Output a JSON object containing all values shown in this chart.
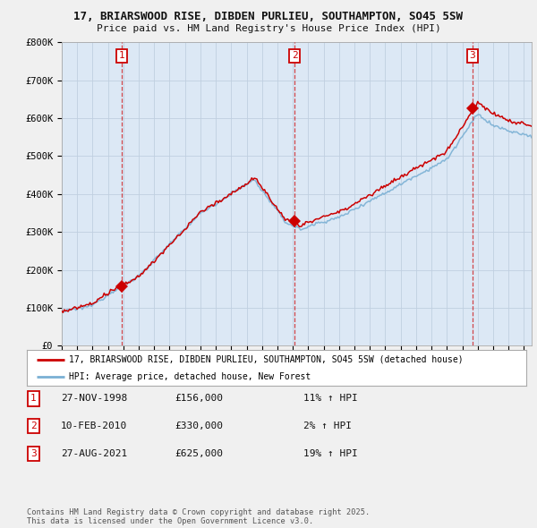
{
  "title_line1": "17, BRIARSWOOD RISE, DIBDEN PURLIEU, SOUTHAMPTON, SO45 5SW",
  "title_line2": "Price paid vs. HM Land Registry's House Price Index (HPI)",
  "ylim": [
    0,
    800000
  ],
  "yticks": [
    0,
    100000,
    200000,
    300000,
    400000,
    500000,
    600000,
    700000,
    800000
  ],
  "ytick_labels": [
    "£0",
    "£100K",
    "£200K",
    "£300K",
    "£400K",
    "£500K",
    "£600K",
    "£700K",
    "£800K"
  ],
  "sale_year_nums": [
    1998.9,
    2010.12,
    2021.65
  ],
  "sale_prices": [
    156000,
    330000,
    625000
  ],
  "sale_labels": [
    "1",
    "2",
    "3"
  ],
  "red_color": "#cc0000",
  "blue_color": "#7ab0d4",
  "plot_bg_color": "#dce8f5",
  "legend_label_red": "17, BRIARSWOOD RISE, DIBDEN PURLIEU, SOUTHAMPTON, SO45 5SW (detached house)",
  "legend_label_blue": "HPI: Average price, detached house, New Forest",
  "table_rows": [
    [
      "1",
      "27-NOV-1998",
      "£156,000",
      "11% ↑ HPI"
    ],
    [
      "2",
      "10-FEB-2010",
      "£330,000",
      "2% ↑ HPI"
    ],
    [
      "3",
      "27-AUG-2021",
      "£625,000",
      "19% ↑ HPI"
    ]
  ],
  "footer": "Contains HM Land Registry data © Crown copyright and database right 2025.\nThis data is licensed under the Open Government Licence v3.0.",
  "bg_color": "#f0f0f0",
  "grid_color": "#c0cfe0"
}
